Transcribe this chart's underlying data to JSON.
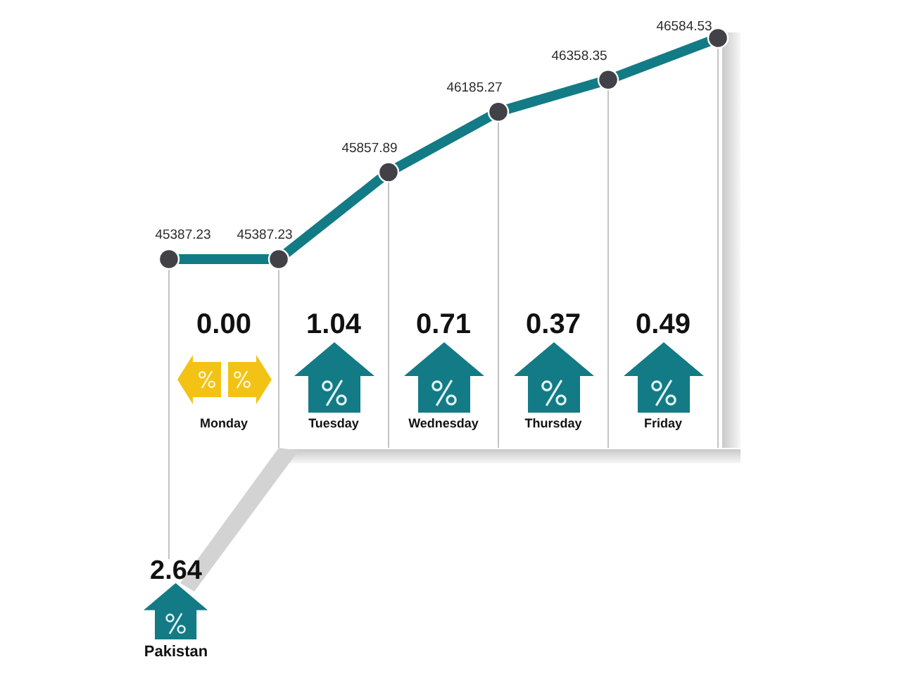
{
  "chart_data": {
    "type": "line",
    "categories": [
      null,
      null,
      null,
      null,
      null,
      null
    ],
    "values": [
      45387.23,
      45387.23,
      45857.89,
      46185.27,
      46358.35,
      46584.53
    ],
    "color": "#127b85",
    "marker": "circle",
    "data_labels": true,
    "grid": "x",
    "tick_labels": false,
    "annotations": [
      "0.00",
      "Monday",
      "1.04",
      "Tuesday",
      "0.71",
      "Wednesday",
      "0.37",
      "Thursday",
      "0.49",
      "Friday",
      "2.64",
      "Pakistan"
    ]
  }
}
